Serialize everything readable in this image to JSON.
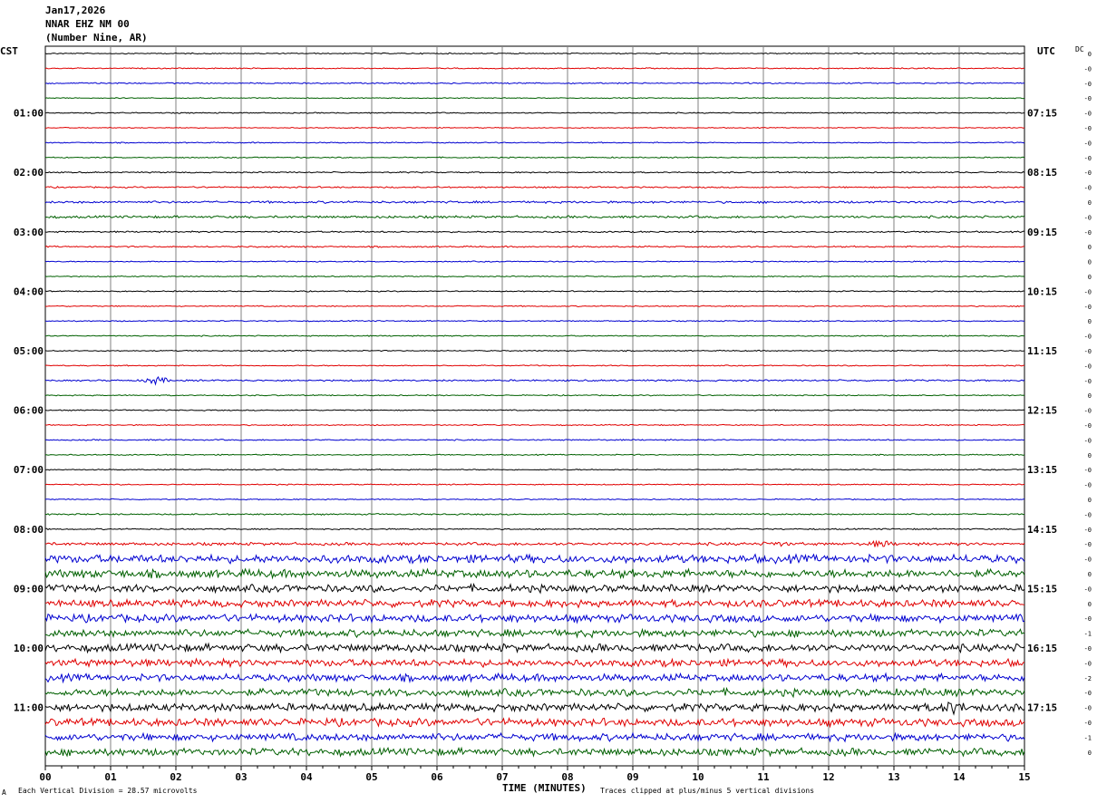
{
  "header": {
    "date": "Jan17,2026",
    "station": "NNAR EHZ NM 00",
    "location": "(Number Nine, AR)"
  },
  "left_axis_title": "CST",
  "right_axis_title": "UTC",
  "dc_label": "DC",
  "footer": {
    "scale_note": "Each Vertical Division =   28.57 microvolts",
    "clip_note": "Traces clipped at plus/minus 5 vertical divisions",
    "corner_mark": "A"
  },
  "chart_data": {
    "type": "line",
    "title": "",
    "xlabel": "TIME (MINUTES)",
    "ylabel": "",
    "xlim": [
      0,
      15
    ],
    "x_ticks": [
      "00",
      "01",
      "02",
      "03",
      "04",
      "05",
      "06",
      "07",
      "08",
      "09",
      "10",
      "11",
      "12",
      "13",
      "14",
      "15"
    ],
    "grid": true,
    "trace_count": 48,
    "trace_colors": [
      "#000000",
      "#e00000",
      "#0000d0",
      "#006000"
    ],
    "hour_labels_cst": [
      "01:00",
      "02:00",
      "03:00",
      "04:00",
      "05:00",
      "06:00",
      "07:00",
      "08:00",
      "09:00",
      "10:00",
      "11:00"
    ],
    "hour_labels_utc": [
      "07:15",
      "08:15",
      "09:15",
      "10:15",
      "11:15",
      "12:15",
      "13:15",
      "14:15",
      "15:15",
      "16:15",
      "17:15"
    ],
    "dc_offsets": [
      "0",
      "-0",
      "-0",
      "-0",
      "-0",
      "-0",
      "-0",
      "-0",
      "-0",
      "-0",
      "0",
      "-0",
      "-0",
      "0",
      "0",
      "0",
      "-0",
      "-0",
      "0",
      "-0",
      "-0",
      "-0",
      "-0",
      "0",
      "-0",
      "-0",
      "-0",
      "0",
      "-0",
      "-0",
      "0",
      "-0",
      "-0",
      "-0",
      "-0",
      "0",
      "-0",
      "0",
      "-0",
      "-1",
      "-0",
      "-0",
      "-2",
      "-0",
      "-0",
      "-0",
      "-1",
      "0"
    ],
    "amplitudes": [
      0.6,
      0.6,
      0.7,
      0.5,
      0.6,
      0.5,
      0.6,
      0.6,
      0.7,
      0.8,
      1.2,
      1.3,
      0.8,
      0.8,
      0.6,
      0.6,
      0.6,
      0.6,
      0.6,
      0.6,
      0.6,
      0.6,
      0.9,
      0.6,
      0.6,
      0.6,
      0.7,
      0.6,
      0.6,
      0.6,
      0.6,
      0.8,
      0.7,
      1.6,
      4.5,
      4.5,
      4.0,
      4.0,
      4.2,
      4.0,
      4.2,
      4.0,
      4.0,
      4.0,
      4.2,
      4.2,
      4.0,
      4.0
    ],
    "events": [
      {
        "trace": 22,
        "minute": 1.7,
        "amplitude": 4
      },
      {
        "trace": 33,
        "minute": 12.8,
        "amplitude": 3
      },
      {
        "trace": 33,
        "minute": 11.2,
        "amplitude": 2
      },
      {
        "trace": 44,
        "minute": 13.9,
        "amplitude": 5
      }
    ]
  }
}
